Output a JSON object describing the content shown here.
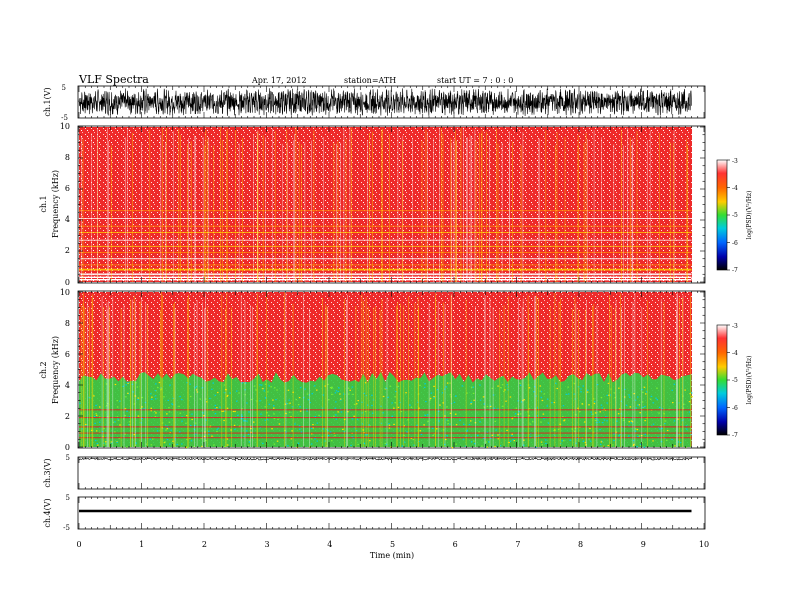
{
  "header": {
    "title": "VLF  Spectra",
    "date": "Apr. 17, 2012",
    "station": "station=ATH",
    "start": "start  UT  =   7  : 0  : 0"
  },
  "chart_data": [
    {
      "type": "line",
      "panel": "ch1-waveform",
      "ylabel": "ch.1(V)",
      "ylim": [
        -5,
        5
      ],
      "yticks": [
        "5",
        "-5"
      ],
      "x_range_min": [
        0,
        9.8
      ],
      "description_values": "noisy waveform oscillating roughly between -4 and 4 V"
    },
    {
      "type": "heatmap",
      "panel": "ch1-spectrogram",
      "ylabel_line1": "ch.1",
      "ylabel_line2": "Frequency  (kHz)",
      "ylim_khz": [
        0,
        10
      ],
      "yticks": [
        "0",
        "2",
        "4",
        "6",
        "8",
        "10"
      ],
      "x_range_min": [
        0,
        9.8
      ],
      "colorbar": {
        "label": "log(PSD)(V²/Hz)",
        "range": [
          -7,
          -3
        ],
        "ticks": [
          "-3",
          "-4",
          "-5",
          "-6",
          "-7"
        ]
      },
      "dominant_log_psd": -3.8
    },
    {
      "type": "heatmap",
      "panel": "ch2-spectrogram",
      "ylabel_line1": "ch.2",
      "ylabel_line2": "Frequency  (kHz)",
      "ylim_khz": [
        0,
        10
      ],
      "yticks": [
        "0",
        "2",
        "4",
        "6",
        "8",
        "10"
      ],
      "x_range_min": [
        0,
        9.8
      ],
      "colorbar": {
        "label": "log(PSD)(V²/Hz)",
        "range": [
          -7,
          -3
        ],
        "ticks": [
          "-3",
          "-4",
          "-5",
          "-6",
          "-7"
        ]
      },
      "band_boundary_khz": 4.5,
      "upper_log_psd": -3.8,
      "lower_log_psd": -5.0
    },
    {
      "type": "line",
      "panel": "ch3-waveform",
      "ylabel": "ch.3(V)",
      "yticks": [
        "5"
      ],
      "x_range_min": [
        0,
        9.8
      ]
    },
    {
      "type": "line",
      "panel": "ch4-waveform",
      "ylabel": "ch.4(V)",
      "ylim": [
        -5,
        5
      ],
      "yticks": [
        "5",
        "-5"
      ],
      "x_range_min": [
        0,
        9.8
      ]
    }
  ],
  "xaxis": {
    "label": "Time  (min)",
    "range": [
      0,
      10
    ],
    "ticks": [
      "0",
      "1",
      "2",
      "3",
      "4",
      "5",
      "6",
      "7",
      "8",
      "9",
      "10"
    ]
  },
  "colors": {
    "spec_red": "#ee2222",
    "spec_green": "#33dd33",
    "spec_yellow": "#ffe000",
    "trace": "#000000"
  }
}
